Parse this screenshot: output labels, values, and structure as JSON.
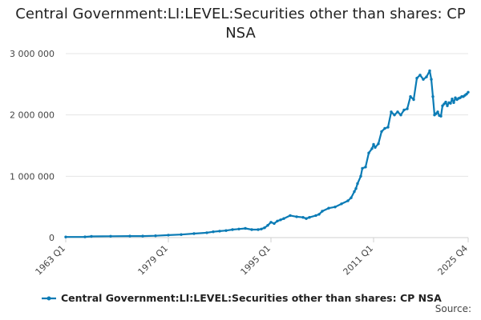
{
  "chart_data": {
    "type": "line",
    "title": "Central Government:LI:LEVEL:Securities other than shares: CP NSA",
    "xlabel": "",
    "ylabel": "",
    "x_range": [
      "1963 Q1",
      "2025 Q4"
    ],
    "ylim": [
      0,
      3000000
    ],
    "y_ticks": [
      0,
      1000000,
      2000000,
      3000000
    ],
    "y_tick_labels": [
      "0",
      "1 000 000",
      "2 000 000",
      "3 000 000"
    ],
    "x_ticks": [
      "1963 Q1",
      "1979 Q1",
      "1995 Q1",
      "2011 Q1",
      "2025 Q4"
    ],
    "grid": true,
    "legend": "bottom",
    "color": "#0a7bb5",
    "series": [
      {
        "name": "Central Government:LI:LEVEL:Securities other than shares: CP NSA",
        "x": [
          "1963 Q1",
          "1966 Q1",
          "1967 Q1",
          "1970 Q1",
          "1973 Q1",
          "1975 Q1",
          "1977 Q1",
          "1979 Q1",
          "1981 Q1",
          "1983 Q1",
          "1985 Q1",
          "1986 Q1",
          "1987 Q1",
          "1988 Q1",
          "1989 Q1",
          "1990 Q1",
          "1991 Q1",
          "1992 Q1",
          "1993 Q1",
          "1993 Q3",
          "1994 Q1",
          "1994 Q3",
          "1995 Q1",
          "1995 Q3",
          "1996 Q1",
          "1996 Q3",
          "1997 Q1",
          "1998 Q1",
          "1999 Q1",
          "2000 Q1",
          "2000 Q3",
          "2001 Q1",
          "2002 Q1",
          "2002 Q3",
          "2003 Q1",
          "2004 Q1",
          "2005 Q1",
          "2006 Q1",
          "2007 Q1",
          "2007 Q3",
          "2008 Q1",
          "2008 Q2",
          "2008 Q3",
          "2009 Q1",
          "2009 Q2",
          "2009 Q4",
          "2010 Q2",
          "2010 Q4",
          "2011 Q1",
          "2011 Q2",
          "2011 Q4",
          "2012 Q2",
          "2012 Q4",
          "2013 Q2",
          "2013 Q4",
          "2014 Q2",
          "2014 Q4",
          "2015 Q2",
          "2015 Q4",
          "2016 Q2",
          "2016 Q4",
          "2017 Q2",
          "2017 Q4",
          "2018 Q2",
          "2018 Q4",
          "2019 Q2",
          "2019 Q4",
          "2020 Q1",
          "2020 Q2",
          "2020 Q3",
          "2020 Q4",
          "2021 Q1",
          "2021 Q2",
          "2021 Q3",
          "2021 Q4",
          "2022 Q1",
          "2022 Q2",
          "2022 Q3",
          "2022 Q4",
          "2023 Q1",
          "2023 Q2",
          "2023 Q3",
          "2023 Q4",
          "2024 Q1",
          "2024 Q2",
          "2024 Q3",
          "2024 Q4",
          "2025 Q1",
          "2025 Q2",
          "2025 Q3",
          "2025 Q4"
        ],
        "values": [
          10000,
          12000,
          20000,
          22000,
          25000,
          25000,
          30000,
          40000,
          50000,
          65000,
          80000,
          95000,
          105000,
          115000,
          130000,
          140000,
          150000,
          130000,
          130000,
          140000,
          160000,
          200000,
          250000,
          230000,
          270000,
          290000,
          310000,
          360000,
          340000,
          330000,
          310000,
          330000,
          360000,
          380000,
          430000,
          480000,
          500000,
          550000,
          600000,
          650000,
          750000,
          800000,
          880000,
          1000000,
          1130000,
          1150000,
          1380000,
          1450000,
          1520000,
          1470000,
          1530000,
          1730000,
          1780000,
          1800000,
          2050000,
          2000000,
          2050000,
          2000000,
          2080000,
          2100000,
          2300000,
          2250000,
          2600000,
          2650000,
          2580000,
          2620000,
          2720000,
          2580000,
          2300000,
          2000000,
          2020000,
          2050000,
          1990000,
          1980000,
          2150000,
          2180000,
          2210000,
          2150000,
          2200000,
          2190000,
          2260000,
          2200000,
          2280000,
          2250000,
          2270000,
          2280000,
          2300000,
          2300000,
          2320000,
          2340000,
          2370000
        ]
      }
    ]
  },
  "source_label": "Source:"
}
